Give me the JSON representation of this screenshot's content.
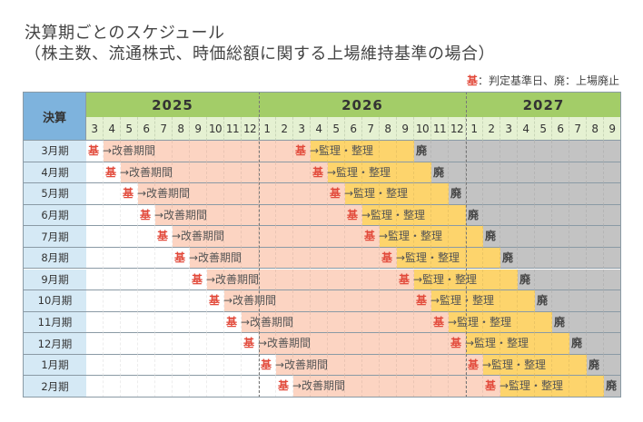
{
  "title_line1": "決算期ごとのスケジュール",
  "title_line2": "（株主数、流通株式、時価総額に関する上場維持基準の場合）",
  "legend": {
    "kijun_mark": "基",
    "text": "：判定基準日、廃：上場廃止"
  },
  "header": {
    "label": "決算",
    "years": [
      {
        "year": "2025",
        "months": [
          "3",
          "4",
          "5",
          "6",
          "7",
          "8",
          "9",
          "10",
          "11",
          "12"
        ]
      },
      {
        "year": "2026",
        "months": [
          "1",
          "2",
          "3",
          "4",
          "5",
          "6",
          "7",
          "8",
          "9",
          "10",
          "11",
          "12"
        ]
      },
      {
        "year": "2027",
        "months": [
          "1",
          "2",
          "3",
          "4",
          "5",
          "6",
          "7",
          "8",
          "9"
        ]
      }
    ]
  },
  "markers": {
    "kijun": "基",
    "improve": "→改善期間",
    "review": "→監理・整理",
    "delisting": "廃"
  },
  "rows": [
    {
      "label": "3月期"
    },
    {
      "label": "4月期"
    },
    {
      "label": "5月期"
    },
    {
      "label": "6月期"
    },
    {
      "label": "7月期"
    },
    {
      "label": "8月期"
    },
    {
      "label": "9月期"
    },
    {
      "label": "10月期"
    },
    {
      "label": "11月期"
    },
    {
      "label": "12月期"
    },
    {
      "label": "1月期"
    },
    {
      "label": "2月期"
    }
  ],
  "colors": {
    "improvement_period": "#fcd4c2",
    "review_period": "#fdd46c",
    "delisted": "#c3c3c3",
    "kijun_mark": "#e24a3b",
    "year_header": "#a3cd68",
    "label_header": "#7eb3dd"
  }
}
